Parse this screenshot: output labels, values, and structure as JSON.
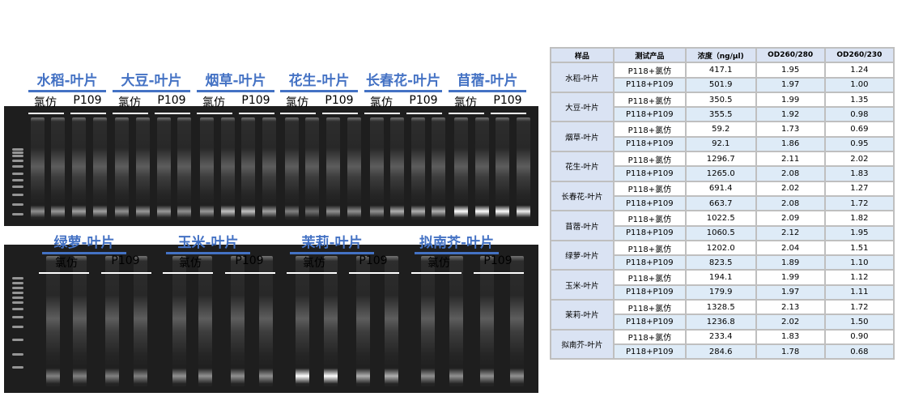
{
  "top_gel": {
    "groups": [
      "水稻-叶片",
      "大豆-叶片",
      "烟草-叶片",
      "花生-叶片",
      "长春花-叶片",
      "苜蓿-叶片"
    ]
  },
  "bottom_gel": {
    "groups": [
      "绿萝-叶片",
      "玉米-叶片",
      "茉莉-叶片",
      "拟南芥-叶片"
    ]
  },
  "lane_labels": [
    "氯仿",
    "P109"
  ],
  "table": {
    "headers": [
      "样品",
      "测试产品",
      "浓度（ng/μl)",
      "OD260/280",
      "OD260/230"
    ],
    "rows": [
      {
        "sample": "水稻-叶片",
        "items": [
          [
            "P118+氯仿",
            "417.1",
            "1.95",
            "1.24"
          ],
          [
            "P118+P109",
            "501.9",
            "1.97",
            "1.00"
          ]
        ]
      },
      {
        "sample": "大豆-叶片",
        "items": [
          [
            "P118+氯仿",
            "350.5",
            "1.99",
            "1.35"
          ],
          [
            "P118+P109",
            "355.5",
            "1.92",
            "0.98"
          ]
        ]
      },
      {
        "sample": "烟草-叶片",
        "items": [
          [
            "P118+氯仿",
            "59.2",
            "1.73",
            "0.69"
          ],
          [
            "P118+P109",
            "92.1",
            "1.86",
            "0.95"
          ]
        ]
      },
      {
        "sample": "花生-叶片",
        "items": [
          [
            "P118+氯仿",
            "1296.7",
            "2.11",
            "2.02"
          ],
          [
            "P118+P109",
            "1265.0",
            "2.08",
            "1.83"
          ]
        ]
      },
      {
        "sample": "长春花-叶片",
        "items": [
          [
            "P118+氯仿",
            "691.4",
            "2.02",
            "1.27"
          ],
          [
            "P118+P109",
            "663.7",
            "2.08",
            "1.72"
          ]
        ]
      },
      {
        "sample": "苜蓿-叶片",
        "items": [
          [
            "P118+氯仿",
            "1022.5",
            "2.09",
            "1.82"
          ],
          [
            "P118+P109",
            "1060.5",
            "2.12",
            "1.95"
          ]
        ]
      },
      {
        "sample": "绿萝-叶片",
        "items": [
          [
            "P118+氯仿",
            "1202.0",
            "2.04",
            "1.51"
          ],
          [
            "P118+P109",
            "823.5",
            "1.89",
            "1.10"
          ]
        ]
      },
      {
        "sample": "玉米-叶片",
        "items": [
          [
            "P118+氯仿",
            "194.1",
            "1.99",
            "1.12"
          ],
          [
            "P118+P109",
            "179.9",
            "1.97",
            "1.11"
          ]
        ]
      },
      {
        "sample": "茉莉-叶片",
        "items": [
          [
            "P118+氯仿",
            "1328.5",
            "2.13",
            "1.72"
          ],
          [
            "P118+P109",
            "1236.8",
            "2.02",
            "1.50"
          ]
        ]
      },
      {
        "sample": "拟南芥-叶片",
        "items": [
          [
            "P118+氯仿",
            "233.4",
            "1.83",
            "0.90"
          ],
          [
            "P118+P109",
            "284.6",
            "1.78",
            "0.68"
          ]
        ]
      }
    ]
  }
}
